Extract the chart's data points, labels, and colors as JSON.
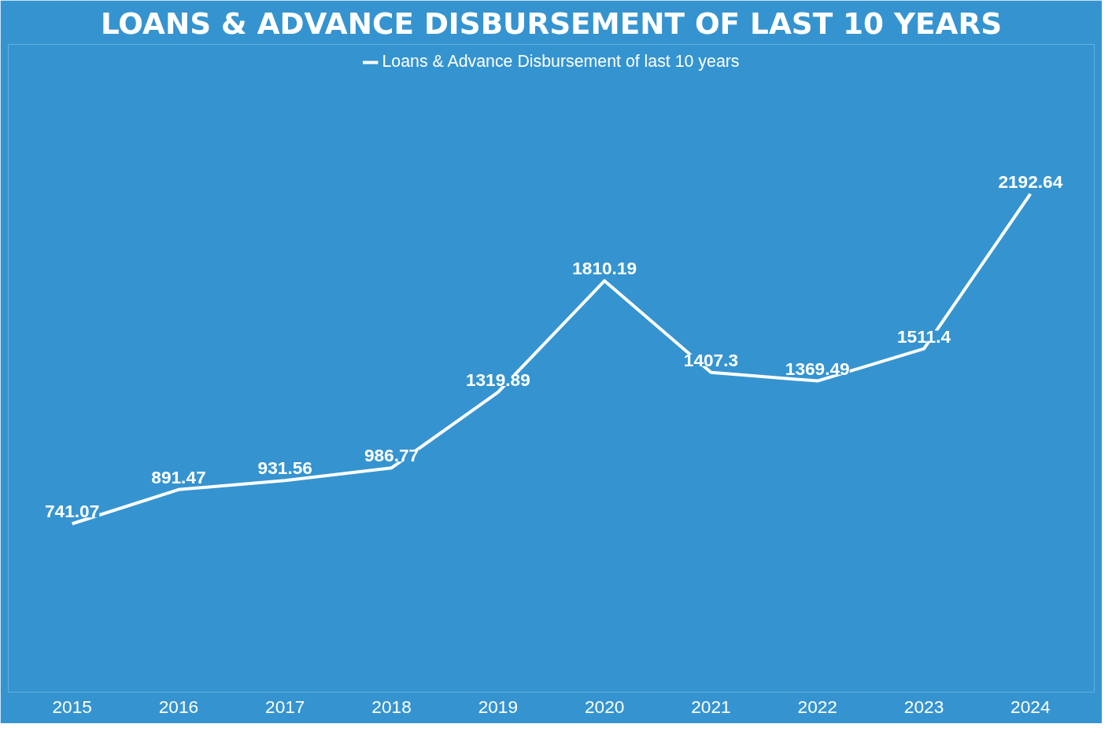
{
  "chart_data": {
    "type": "line",
    "title": "LOANS & ADVANCE DISBURSEMENT OF LAST 10 YEARS",
    "categories": [
      "2015",
      "2016",
      "2017",
      "2018",
      "2019",
      "2020",
      "2021",
      "2022",
      "2023",
      "2024"
    ],
    "series": [
      {
        "name": "Loans & Advance Disbursement of last 10 years",
        "color": "#ffffff",
        "values": [
          741.07,
          891.47,
          931.56,
          986.77,
          1319.89,
          1810.19,
          1407.3,
          1369.49,
          1511.4,
          2192.64
        ]
      }
    ],
    "data_labels": true,
    "legend": "top",
    "grid": false,
    "marker": "none",
    "line_style": "solid"
  }
}
